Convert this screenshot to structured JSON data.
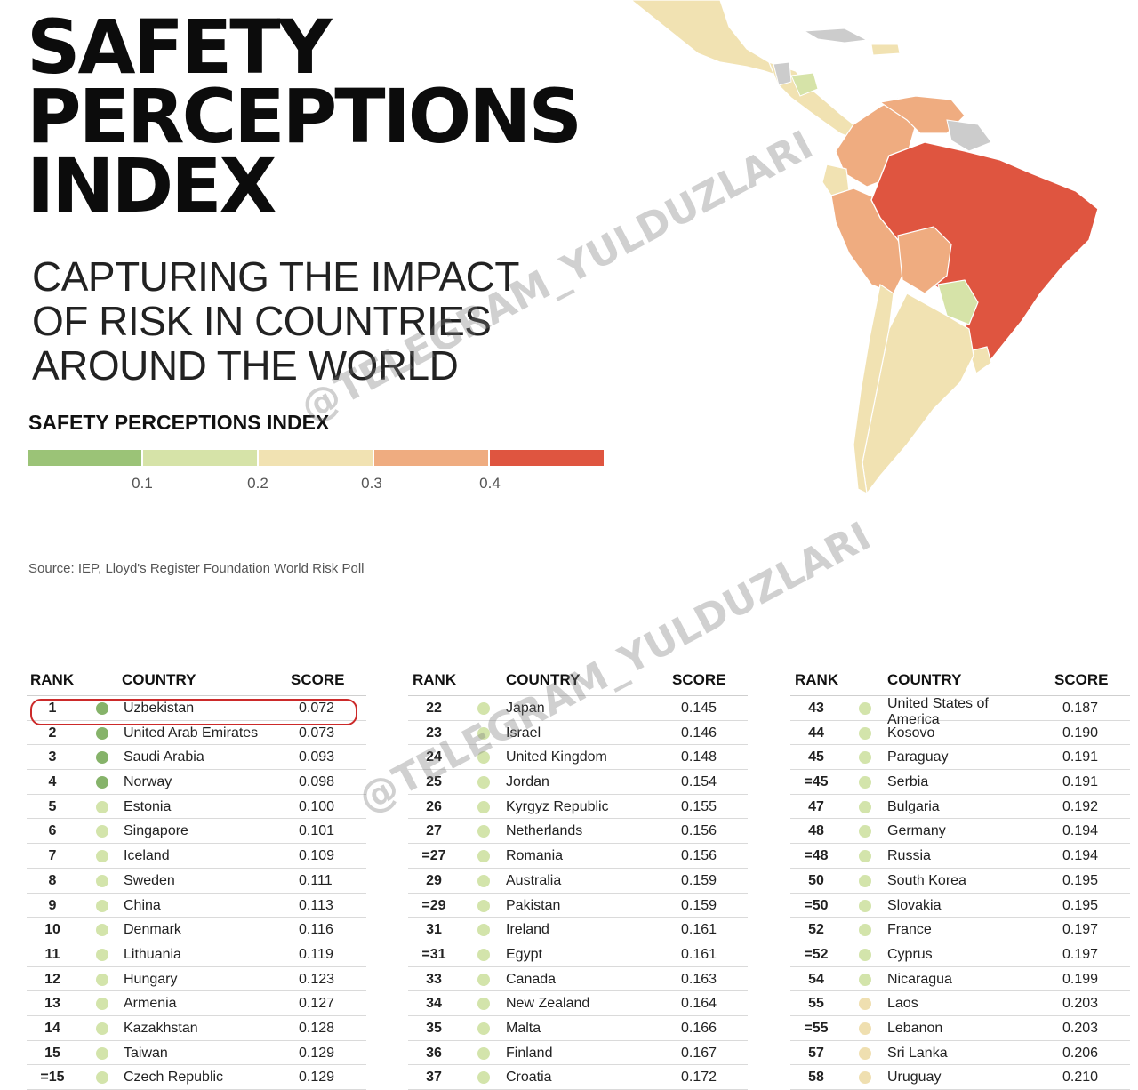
{
  "title": {
    "line1": "SAFETY",
    "line2": "PERCEPTIONS",
    "line3": "INDEX"
  },
  "subtitle": {
    "line1": "CAPTURING THE IMPACT",
    "line2": "OF RISK IN COUNTRIES",
    "line3": "AROUND THE WORLD"
  },
  "legend": {
    "title": "SAFETY PERCEPTIONS INDEX",
    "colors": [
      "#9bc377",
      "#d6e3a8",
      "#f1e2b2",
      "#efac80",
      "#df5540"
    ],
    "ticks": [
      "0.1",
      "0.2",
      "0.3",
      "0.4"
    ]
  },
  "source": "Source: IEP, Lloyd's Register Foundation World Risk Poll",
  "watermark": "@TELEGRAM_YULDUZLARI",
  "headers": {
    "rank": "RANK",
    "country": "COUNTRY",
    "score": "SCORE"
  },
  "colors": {
    "dark_green": "#86b36a",
    "light_green": "#d3e4ab",
    "cream": "#efdfb0",
    "highlight": "#cc2a2a"
  },
  "table1": [
    {
      "rank": "1",
      "country": "Uzbekistan",
      "score": "0.072",
      "dot": "#86b36a"
    },
    {
      "rank": "2",
      "country": "United Arab Emirates",
      "score": "0.073",
      "dot": "#86b36a"
    },
    {
      "rank": "3",
      "country": "Saudi Arabia",
      "score": "0.093",
      "dot": "#86b36a"
    },
    {
      "rank": "4",
      "country": "Norway",
      "score": "0.098",
      "dot": "#86b36a"
    },
    {
      "rank": "5",
      "country": "Estonia",
      "score": "0.100",
      "dot": "#d3e4ab"
    },
    {
      "rank": "6",
      "country": "Singapore",
      "score": "0.101",
      "dot": "#d3e4ab"
    },
    {
      "rank": "7",
      "country": "Iceland",
      "score": "0.109",
      "dot": "#d3e4ab"
    },
    {
      "rank": "8",
      "country": "Sweden",
      "score": "0.111",
      "dot": "#d3e4ab"
    },
    {
      "rank": "9",
      "country": "China",
      "score": "0.113",
      "dot": "#d3e4ab"
    },
    {
      "rank": "10",
      "country": "Denmark",
      "score": "0.116",
      "dot": "#d3e4ab"
    },
    {
      "rank": "11",
      "country": "Lithuania",
      "score": "0.119",
      "dot": "#d3e4ab"
    },
    {
      "rank": "12",
      "country": "Hungary",
      "score": "0.123",
      "dot": "#d3e4ab"
    },
    {
      "rank": "13",
      "country": "Armenia",
      "score": "0.127",
      "dot": "#d3e4ab"
    },
    {
      "rank": "14",
      "country": "Kazakhstan",
      "score": "0.128",
      "dot": "#d3e4ab"
    },
    {
      "rank": "15",
      "country": "Taiwan",
      "score": "0.129",
      "dot": "#d3e4ab"
    },
    {
      "rank": "=15",
      "country": "Czech Republic",
      "score": "0.129",
      "dot": "#d3e4ab"
    }
  ],
  "table2": [
    {
      "rank": "22",
      "country": "Japan",
      "score": "0.145",
      "dot": "#d3e4ab"
    },
    {
      "rank": "23",
      "country": "Israel",
      "score": "0.146",
      "dot": "#d3e4ab"
    },
    {
      "rank": "24",
      "country": "United Kingdom",
      "score": "0.148",
      "dot": "#d3e4ab"
    },
    {
      "rank": "25",
      "country": "Jordan",
      "score": "0.154",
      "dot": "#d3e4ab"
    },
    {
      "rank": "26",
      "country": "Kyrgyz Republic",
      "score": "0.155",
      "dot": "#d3e4ab"
    },
    {
      "rank": "27",
      "country": "Netherlands",
      "score": "0.156",
      "dot": "#d3e4ab"
    },
    {
      "rank": "=27",
      "country": "Romania",
      "score": "0.156",
      "dot": "#d3e4ab"
    },
    {
      "rank": "29",
      "country": "Australia",
      "score": "0.159",
      "dot": "#d3e4ab"
    },
    {
      "rank": "=29",
      "country": "Pakistan",
      "score": "0.159",
      "dot": "#d3e4ab"
    },
    {
      "rank": "31",
      "country": "Ireland",
      "score": "0.161",
      "dot": "#d3e4ab"
    },
    {
      "rank": "=31",
      "country": "Egypt",
      "score": "0.161",
      "dot": "#d3e4ab"
    },
    {
      "rank": "33",
      "country": "Canada",
      "score": "0.163",
      "dot": "#d3e4ab"
    },
    {
      "rank": "34",
      "country": "New Zealand",
      "score": "0.164",
      "dot": "#d3e4ab"
    },
    {
      "rank": "35",
      "country": "Malta",
      "score": "0.166",
      "dot": "#d3e4ab"
    },
    {
      "rank": "36",
      "country": "Finland",
      "score": "0.167",
      "dot": "#d3e4ab"
    },
    {
      "rank": "37",
      "country": "Croatia",
      "score": "0.172",
      "dot": "#d3e4ab"
    }
  ],
  "table3": [
    {
      "rank": "43",
      "country": "United States of America",
      "score": "0.187",
      "dot": "#d3e4ab"
    },
    {
      "rank": "44",
      "country": "Kosovo",
      "score": "0.190",
      "dot": "#d3e4ab"
    },
    {
      "rank": "45",
      "country": "Paraguay",
      "score": "0.191",
      "dot": "#d3e4ab"
    },
    {
      "rank": "=45",
      "country": "Serbia",
      "score": "0.191",
      "dot": "#d3e4ab"
    },
    {
      "rank": "47",
      "country": "Bulgaria",
      "score": "0.192",
      "dot": "#d3e4ab"
    },
    {
      "rank": "48",
      "country": "Germany",
      "score": "0.194",
      "dot": "#d3e4ab"
    },
    {
      "rank": "=48",
      "country": "Russia",
      "score": "0.194",
      "dot": "#d3e4ab"
    },
    {
      "rank": "50",
      "country": "South Korea",
      "score": "0.195",
      "dot": "#d3e4ab"
    },
    {
      "rank": "=50",
      "country": "Slovakia",
      "score": "0.195",
      "dot": "#d3e4ab"
    },
    {
      "rank": "52",
      "country": "France",
      "score": "0.197",
      "dot": "#d3e4ab"
    },
    {
      "rank": "=52",
      "country": "Cyprus",
      "score": "0.197",
      "dot": "#d3e4ab"
    },
    {
      "rank": "54",
      "country": "Nicaragua",
      "score": "0.199",
      "dot": "#d3e4ab"
    },
    {
      "rank": "55",
      "country": "Laos",
      "score": "0.203",
      "dot": "#efdfb0"
    },
    {
      "rank": "=55",
      "country": "Lebanon",
      "score": "0.203",
      "dot": "#efdfb0"
    },
    {
      "rank": "57",
      "country": "Sri Lanka",
      "score": "0.206",
      "dot": "#efdfb0"
    },
    {
      "rank": "58",
      "country": "Uruguay",
      "score": "0.210",
      "dot": "#efdfb0"
    }
  ]
}
